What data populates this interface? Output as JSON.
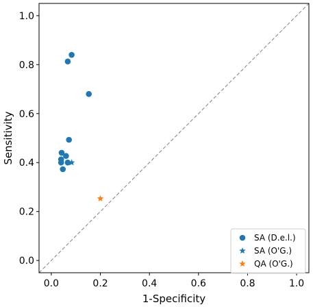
{
  "chart_data": {
    "type": "scatter",
    "title": "",
    "xlabel": "1-Specificity",
    "ylabel": "Sensitivity",
    "xlim": [
      -0.05,
      1.05
    ],
    "ylim": [
      -0.05,
      1.05
    ],
    "xticks": [
      "0.0",
      "0.2",
      "0.4",
      "0.6",
      "0.8",
      "1.0"
    ],
    "yticks": [
      "0.0",
      "0.2",
      "0.4",
      "0.6",
      "0.8",
      "1.0"
    ],
    "grid": false,
    "reference_line": "diagonal",
    "legend_position": "bottom-right",
    "series": [
      {
        "name": "SA (D.e.l.)",
        "marker": "circle",
        "color": "#1f77b4",
        "points": [
          {
            "x": 0.083,
            "y": 0.84
          },
          {
            "x": 0.067,
            "y": 0.813
          },
          {
            "x": 0.153,
            "y": 0.68
          },
          {
            "x": 0.072,
            "y": 0.493
          },
          {
            "x": 0.042,
            "y": 0.44
          },
          {
            "x": 0.06,
            "y": 0.427
          },
          {
            "x": 0.04,
            "y": 0.413
          },
          {
            "x": 0.04,
            "y": 0.4
          },
          {
            "x": 0.067,
            "y": 0.4
          },
          {
            "x": 0.047,
            "y": 0.373
          }
        ]
      },
      {
        "name": "SA (O'G.)",
        "marker": "star",
        "color": "#1f77b4",
        "points": [
          {
            "x": 0.083,
            "y": 0.4
          }
        ]
      },
      {
        "name": "QA (O'G.)",
        "marker": "star",
        "color": "#ff7f0e",
        "points": [
          {
            "x": 0.2,
            "y": 0.253
          }
        ]
      }
    ]
  }
}
